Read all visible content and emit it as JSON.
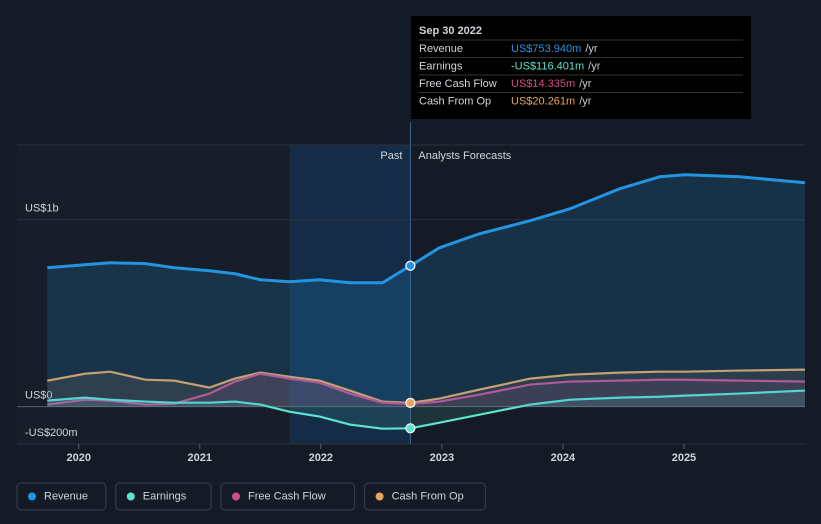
{
  "chart_data": {
    "type": "line",
    "x": [
      2019.74,
      2020.05,
      2020.26,
      2020.55,
      2020.79,
      2021.08,
      2021.29,
      2021.5,
      2021.74,
      2021.99,
      2022.24,
      2022.51,
      2022.74,
      2022.98,
      2023.31,
      2023.73,
      2024.06,
      2024.47,
      2024.8,
      2025.01,
      2025.46,
      2026.0
    ],
    "series": [
      {
        "name": "Revenue",
        "color": "#2394df",
        "values": [
          743,
          759,
          770,
          765,
          743,
          727,
          711,
          679,
          668,
          679,
          663,
          663,
          754,
          850,
          925,
          995,
          1059,
          1166,
          1230,
          1241,
          1230,
          1198
        ]
      },
      {
        "name": "Earnings",
        "color": "#5fe3cf",
        "values": [
          32,
          48,
          37,
          27,
          21,
          21,
          27,
          11,
          -27,
          -53,
          -96,
          -118,
          -116,
          -86,
          -43,
          11,
          37,
          48,
          53,
          59,
          70,
          86
        ]
      },
      {
        "name": "Free Cash Flow",
        "color": "#d24d8a",
        "values": [
          11,
          37,
          32,
          11,
          16,
          70,
          134,
          176,
          150,
          128,
          70,
          21,
          14,
          27,
          64,
          118,
          134,
          139,
          144,
          144,
          139,
          134
        ]
      },
      {
        "name": "Cash From Op",
        "color": "#e8a45d",
        "values": [
          139,
          176,
          187,
          144,
          139,
          102,
          150,
          182,
          160,
          139,
          86,
          27,
          20,
          43,
          91,
          150,
          171,
          182,
          187,
          187,
          193,
          198
        ]
      }
    ],
    "xlim": [
      2019.49,
      2026.0
    ],
    "xticks": [
      2020,
      2021,
      2022,
      2023,
      2024,
      2025
    ],
    "ylim": [
      -200,
      1400
    ],
    "yticks": [
      {
        "value": -200,
        "label": "-US$200m"
      },
      {
        "value": 0,
        "label": "US$0"
      },
      {
        "value": 1000,
        "label": "US$1b"
      }
    ],
    "past_label": "Past",
    "forecast_label": "Analysts Forecasts",
    "tooltip": {
      "date": "Sep 30 2022",
      "rows": [
        {
          "label": "Revenue",
          "value": "US$753.940m",
          "unit": "/yr"
        },
        {
          "label": "Earnings",
          "value": "-US$116.401m",
          "unit": "/yr"
        },
        {
          "label": "Free Cash Flow",
          "value": "US$14.335m",
          "unit": "/yr"
        },
        {
          "label": "Cash From Op",
          "value": "US$20.261m",
          "unit": "/yr"
        }
      ]
    },
    "marker_index": 12
  }
}
